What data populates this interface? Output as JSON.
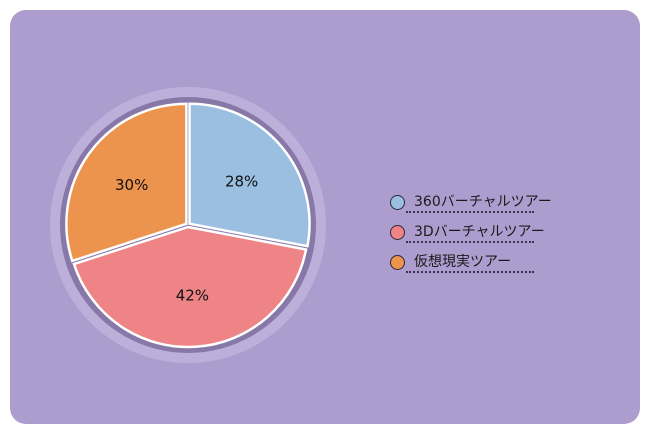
{
  "chart_data": {
    "type": "pie",
    "start": "top",
    "direction": "clockwise",
    "slices": [
      {
        "label": "360バーチャルツアー",
        "value": 28,
        "display": "28%",
        "color": "#9bbfe0"
      },
      {
        "label": "3Dバーチャルツアー",
        "value": 42,
        "display": "42%",
        "color": "#ee8486"
      },
      {
        "label": "仮想現実ツアー",
        "value": 30,
        "display": "30%",
        "color": "#ec934d"
      }
    ],
    "legend_position": "right"
  },
  "colors": {
    "background": "#ad9dcf"
  }
}
